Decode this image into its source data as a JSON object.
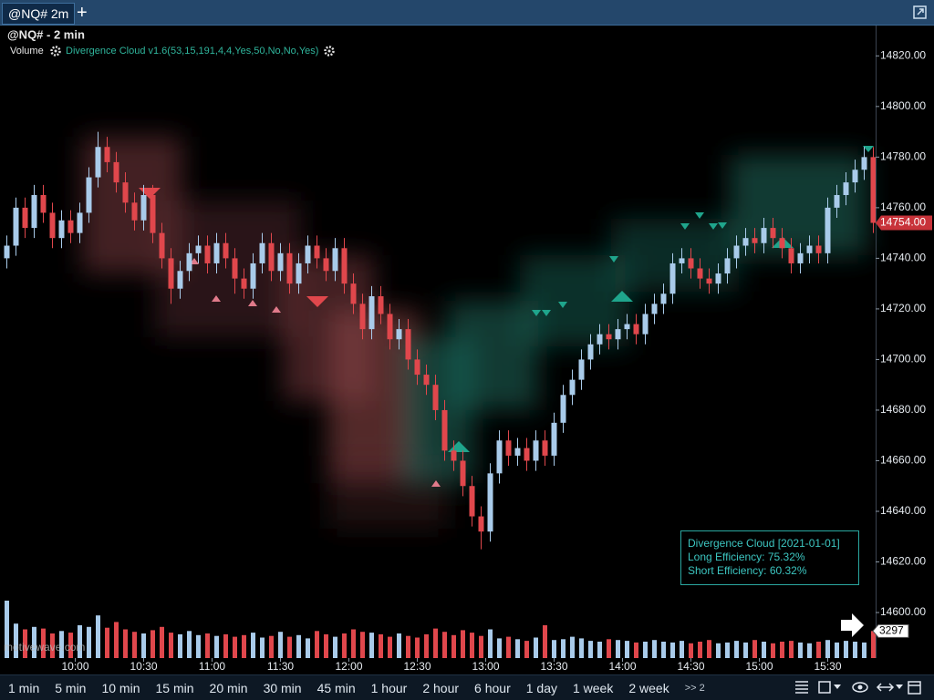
{
  "tab": {
    "title": "@NQ# 2m",
    "add": "+"
  },
  "chart_data": {
    "type": "candlestick",
    "title": "@NQ# - 2 min",
    "indicators": [
      "Volume",
      "Divergence Cloud v1.6(53,15,191,4,4,Yes,50,No,No,Yes)"
    ],
    "x": [
      570,
      574,
      578,
      582,
      586,
      590,
      594,
      598,
      602,
      606,
      610,
      614,
      618,
      622,
      626,
      630,
      634,
      638,
      642,
      646,
      650,
      654,
      658,
      662,
      666,
      670,
      674,
      678,
      682,
      686,
      690,
      694,
      698,
      702,
      706,
      710,
      714,
      718,
      722,
      726,
      730,
      734,
      738,
      742,
      746,
      750,
      754,
      758,
      762,
      766,
      770,
      774,
      778,
      782,
      786,
      790,
      794,
      798,
      802,
      806,
      810,
      814,
      818,
      822,
      826,
      830,
      834,
      838,
      842,
      846,
      850,
      854,
      858,
      862,
      866,
      870,
      874,
      878,
      882,
      886,
      890,
      894,
      898,
      902,
      906,
      910,
      914,
      918,
      922,
      926,
      930,
      934,
      938,
      942,
      946,
      950
    ],
    "open": [
      14740,
      14745,
      14760,
      14752,
      14765,
      14758,
      14748,
      14755,
      14750,
      14758,
      14772,
      14784,
      14778,
      14770,
      14762,
      14755,
      14765,
      14750,
      14740,
      14728,
      14735,
      14742,
      14745,
      14738,
      14746,
      14740,
      14732,
      14728,
      14738,
      14746,
      14735,
      14742,
      14730,
      14738,
      14745,
      14740,
      14735,
      14744,
      14730,
      14722,
      14712,
      14725,
      14718,
      14708,
      14712,
      14700,
      14694,
      14690,
      14680,
      14664,
      14660,
      14650,
      14638,
      14632,
      14655,
      14668,
      14662,
      14665,
      14660,
      14668,
      14662,
      14675,
      14686,
      14692,
      14700,
      14706,
      14710,
      14708,
      14712,
      14714,
      14710,
      14718,
      14722,
      14726,
      14738,
      14740,
      14736,
      14732,
      14730,
      14734,
      14740,
      14745,
      14748,
      14746,
      14752,
      14748,
      14744,
      14738,
      14742,
      14745,
      14742,
      14760,
      14765,
      14770,
      14775,
      14780
    ],
    "high": [
      14749,
      14764,
      14764,
      14769,
      14769,
      14762,
      14759,
      14759,
      14762,
      14776,
      14790,
      14788,
      14782,
      14774,
      14766,
      14769,
      14769,
      14754,
      14744,
      14739,
      14746,
      14749,
      14749,
      14750,
      14750,
      14744,
      14736,
      14742,
      14750,
      14750,
      14746,
      14746,
      14742,
      14749,
      14749,
      14744,
      14748,
      14748,
      14734,
      14726,
      14729,
      14729,
      14722,
      14716,
      14716,
      14704,
      14698,
      14694,
      14684,
      14668,
      14664,
      14654,
      14642,
      14659,
      14672,
      14672,
      14669,
      14669,
      14672,
      14672,
      14679,
      14690,
      14696,
      14704,
      14710,
      14714,
      14714,
      14716,
      14718,
      14718,
      14722,
      14726,
      14730,
      14742,
      14744,
      14744,
      14740,
      14736,
      14738,
      14744,
      14749,
      14752,
      14752,
      14756,
      14756,
      14752,
      14748,
      14746,
      14749,
      14749,
      14764,
      14769,
      14774,
      14779,
      14784,
      14784
    ],
    "low": [
      14736,
      14741,
      14748,
      14748,
      14754,
      14744,
      14744,
      14746,
      14746,
      14754,
      14768,
      14774,
      14766,
      14758,
      14751,
      14751,
      14746,
      14736,
      14722,
      14724,
      14731,
      14738,
      14734,
      14734,
      14736,
      14726,
      14724,
      14724,
      14734,
      14731,
      14731,
      14726,
      14726,
      14734,
      14736,
      14731,
      14731,
      14726,
      14718,
      14708,
      14708,
      14714,
      14704,
      14704,
      14696,
      14690,
      14686,
      14676,
      14660,
      14656,
      14646,
      14634,
      14625,
      14628,
      14651,
      14658,
      14658,
      14656,
      14656,
      14658,
      14658,
      14671,
      14682,
      14688,
      14696,
      14702,
      14704,
      14704,
      14708,
      14706,
      14706,
      14714,
      14718,
      14722,
      14734,
      14732,
      14728,
      14726,
      14726,
      14730,
      14736,
      14741,
      14742,
      14742,
      14744,
      14740,
      14734,
      14734,
      14738,
      14738,
      14738,
      14756,
      14761,
      14766,
      14771,
      14750
    ],
    "close": [
      14745,
      14760,
      14752,
      14765,
      14758,
      14748,
      14755,
      14750,
      14758,
      14772,
      14784,
      14778,
      14770,
      14762,
      14755,
      14765,
      14750,
      14740,
      14728,
      14735,
      14742,
      14745,
      14738,
      14746,
      14740,
      14732,
      14728,
      14738,
      14746,
      14735,
      14742,
      14730,
      14738,
      14745,
      14740,
      14735,
      14744,
      14730,
      14722,
      14712,
      14725,
      14718,
      14708,
      14712,
      14700,
      14694,
      14690,
      14680,
      14664,
      14660,
      14650,
      14638,
      14632,
      14655,
      14668,
      14662,
      14665,
      14660,
      14668,
      14662,
      14675,
      14686,
      14692,
      14700,
      14706,
      14710,
      14708,
      14712,
      14714,
      14710,
      14718,
      14722,
      14726,
      14738,
      14740,
      14736,
      14732,
      14730,
      14734,
      14740,
      14745,
      14748,
      14746,
      14752,
      14748,
      14744,
      14738,
      14742,
      14745,
      14742,
      14760,
      14765,
      14770,
      14775,
      14780,
      14754
    ],
    "volume": [
      7000,
      4200,
      3500,
      3800,
      3600,
      3000,
      3300,
      3100,
      4000,
      3800,
      5200,
      3700,
      4400,
      3500,
      3200,
      3000,
      3400,
      3800,
      3100,
      2900,
      3300,
      2800,
      3000,
      2700,
      2900,
      2600,
      2800,
      3100,
      2500,
      2700,
      3200,
      2600,
      2800,
      2400,
      3300,
      2900,
      2600,
      3000,
      3500,
      3200,
      3100,
      2900,
      2600,
      3000,
      2700,
      2500,
      2900,
      3600,
      3200,
      2800,
      3400,
      3100,
      2700,
      3500,
      2400,
      2600,
      2300,
      2100,
      2500,
      4000,
      2200,
      2300,
      2600,
      2400,
      2100,
      2000,
      2300,
      2200,
      2100,
      1900,
      2000,
      2200,
      2000,
      1900,
      2100,
      1800,
      2000,
      2200,
      1800,
      1900,
      2100,
      1900,
      2200,
      2000,
      1800,
      2000,
      2100,
      1900,
      1800,
      2000,
      2200,
      1900,
      2100,
      2000,
      1900,
      3297
    ],
    "up_color": "#a9cbea",
    "down_color": "#e0474c",
    "xlim": [
      567,
      951
    ],
    "xticks": [
      {
        "value": 600,
        "label": "10:00"
      },
      {
        "value": 630,
        "label": "10:30"
      },
      {
        "value": 660,
        "label": "11:00"
      },
      {
        "value": 690,
        "label": "11:30"
      },
      {
        "value": 720,
        "label": "12:00"
      },
      {
        "value": 750,
        "label": "12:30"
      },
      {
        "value": 780,
        "label": "13:00"
      },
      {
        "value": 810,
        "label": "13:30"
      },
      {
        "value": 840,
        "label": "14:00"
      },
      {
        "value": 870,
        "label": "14:30"
      },
      {
        "value": 900,
        "label": "15:00"
      },
      {
        "value": 930,
        "label": "15:30"
      }
    ],
    "ylim": [
      14582,
      14832
    ],
    "yticks": [
      {
        "value": 14600,
        "label": "14600.00"
      },
      {
        "value": 14620,
        "label": "14620.00"
      },
      {
        "value": 14640,
        "label": "14640.00"
      },
      {
        "value": 14660,
        "label": "14660.00"
      },
      {
        "value": 14680,
        "label": "14680.00"
      },
      {
        "value": 14700,
        "label": "14700.00"
      },
      {
        "value": 14720,
        "label": "14720.00"
      },
      {
        "value": 14740,
        "label": "14740.00"
      },
      {
        "value": 14760,
        "label": "14760.00"
      },
      {
        "value": 14780,
        "label": "14780.00"
      },
      {
        "value": 14800,
        "label": "14800.00"
      },
      {
        "value": 14820,
        "label": "14820.00"
      }
    ],
    "volume_lim": [
      0,
      8000
    ],
    "last_price": {
      "value": 14754,
      "label": "14754.00"
    },
    "grid": false
  },
  "info_box": [
    "Divergence Cloud [2021-01-01]",
    "Long Efficiency: 75.32%",
    "Short Efficiency: 60.32%"
  ],
  "watermark": "motivewave.com",
  "timeframes": [
    "1 min",
    "5 min",
    "10 min",
    "15 min",
    "20 min",
    "30 min",
    "45 min",
    "1 hour",
    "2 hour",
    "6 hour",
    "1 day",
    "1 week",
    "2 week"
  ],
  "more": ">> 2"
}
